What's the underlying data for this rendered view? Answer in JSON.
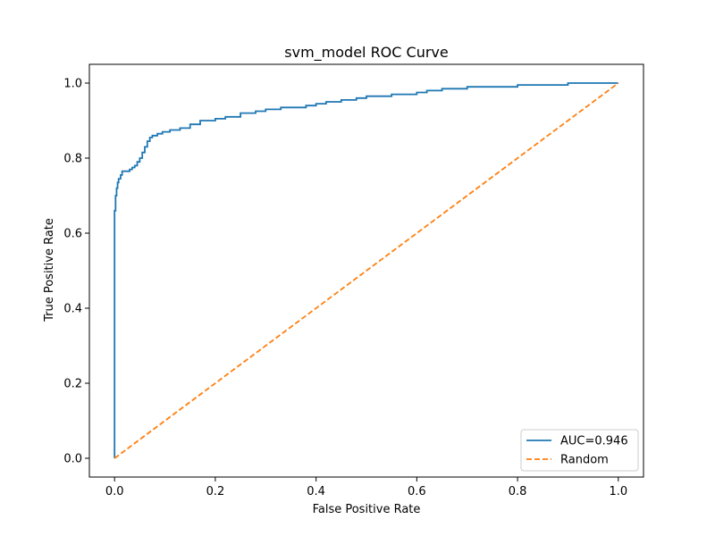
{
  "chart_data": {
    "type": "line",
    "title": "svm_model ROC Curve",
    "xlabel": "False Positive Rate",
    "ylabel": "True Positive Rate",
    "xlim": [
      -0.05,
      1.05
    ],
    "ylim": [
      -0.05,
      1.05
    ],
    "x_ticks": [
      0.0,
      0.2,
      0.4,
      0.6,
      0.8,
      1.0
    ],
    "y_ticks": [
      0.0,
      0.2,
      0.4,
      0.6,
      0.8,
      1.0
    ],
    "x_tick_labels": [
      "0.0",
      "0.2",
      "0.4",
      "0.6",
      "0.8",
      "1.0"
    ],
    "y_tick_labels": [
      "0.0",
      "0.2",
      "0.4",
      "0.6",
      "0.8",
      "1.0"
    ],
    "grid": false,
    "legend_position": "lower-right",
    "series": [
      {
        "name": "AUC=0.946",
        "color": "#1f77b4",
        "line_style": "solid",
        "step": true,
        "x": [
          0.0,
          0.0,
          0.002,
          0.004,
          0.006,
          0.008,
          0.012,
          0.015,
          0.018,
          0.022,
          0.025,
          0.03,
          0.035,
          0.04,
          0.045,
          0.05,
          0.055,
          0.06,
          0.065,
          0.07,
          0.075,
          0.08,
          0.085,
          0.095,
          0.11,
          0.13,
          0.15,
          0.17,
          0.2,
          0.22,
          0.25,
          0.28,
          0.3,
          0.33,
          0.38,
          0.4,
          0.42,
          0.45,
          0.48,
          0.5,
          0.55,
          0.6,
          0.62,
          0.65,
          0.7,
          0.75,
          0.8,
          0.85,
          0.9,
          1.0
        ],
        "y": [
          0.0,
          0.66,
          0.7,
          0.72,
          0.735,
          0.745,
          0.755,
          0.765,
          0.765,
          0.765,
          0.765,
          0.77,
          0.775,
          0.78,
          0.79,
          0.8,
          0.815,
          0.83,
          0.845,
          0.855,
          0.86,
          0.86,
          0.865,
          0.87,
          0.875,
          0.88,
          0.89,
          0.9,
          0.905,
          0.91,
          0.92,
          0.925,
          0.93,
          0.935,
          0.94,
          0.945,
          0.95,
          0.955,
          0.96,
          0.965,
          0.97,
          0.975,
          0.98,
          0.985,
          0.99,
          0.99,
          0.995,
          0.995,
          1.0,
          1.0
        ]
      },
      {
        "name": "Random",
        "color": "#ff7f0e",
        "line_style": "dashed",
        "step": false,
        "x": [
          0.0,
          1.0
        ],
        "y": [
          0.0,
          1.0
        ]
      }
    ]
  }
}
